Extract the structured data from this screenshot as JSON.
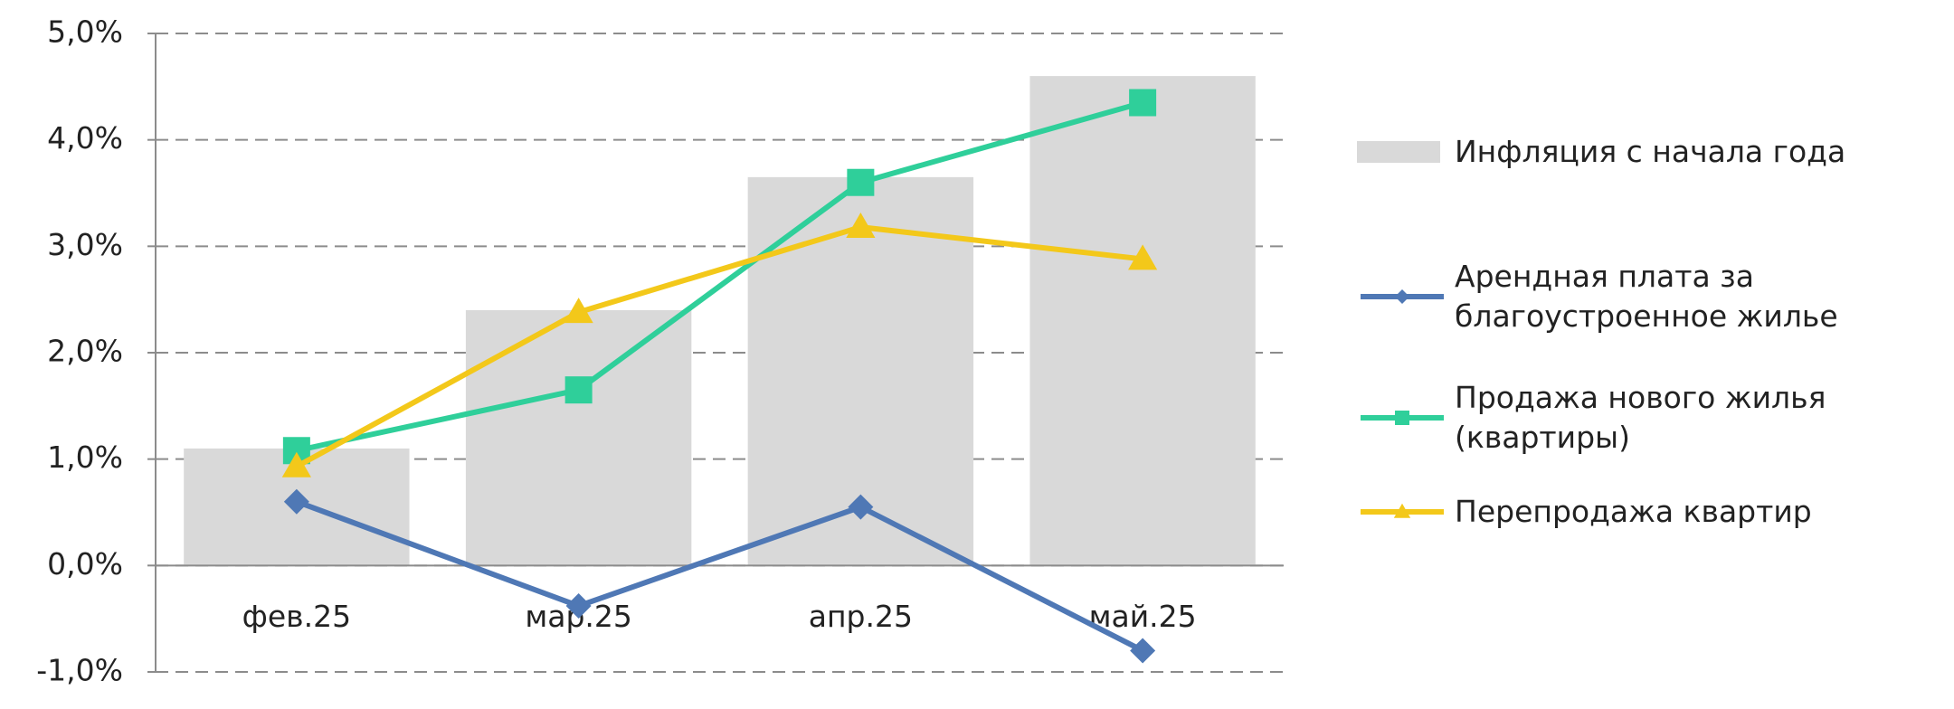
{
  "chart_data": {
    "type": "combo",
    "categories": [
      "фев.25",
      "мар.25",
      "апр.25",
      "май.25"
    ],
    "series": [
      {
        "name": "Инфляция с начала года",
        "type": "bar",
        "color": "#d9d9d9",
        "values": [
          1.1,
          2.4,
          3.65,
          4.6
        ]
      },
      {
        "name": "Арендная плата за благоустроенное жилье",
        "type": "line",
        "marker": "diamond",
        "color": "#4f78b5",
        "values": [
          0.6,
          -0.38,
          0.55,
          -0.8
        ]
      },
      {
        "name": "Продажа нового жилья (квартиры)",
        "type": "line",
        "marker": "square",
        "color": "#2fcf9a",
        "values": [
          1.08,
          1.65,
          3.6,
          4.35
        ]
      },
      {
        "name": "Перепродажа квартир",
        "type": "line",
        "marker": "triangle",
        "color": "#f3c81a",
        "values": [
          0.93,
          2.38,
          3.18,
          2.88
        ]
      }
    ],
    "ylim": [
      -1,
      5
    ],
    "yticks": [
      {
        "value": -1,
        "label": "-1,0%"
      },
      {
        "value": 0,
        "label": "0,0%"
      },
      {
        "value": 1,
        "label": "1,0%"
      },
      {
        "value": 2,
        "label": "2,0%"
      },
      {
        "value": 3,
        "label": "3,0%"
      },
      {
        "value": 4,
        "label": "4,0%"
      },
      {
        "value": 5,
        "label": "5,0%"
      }
    ],
    "grid": true,
    "legend": "right"
  }
}
